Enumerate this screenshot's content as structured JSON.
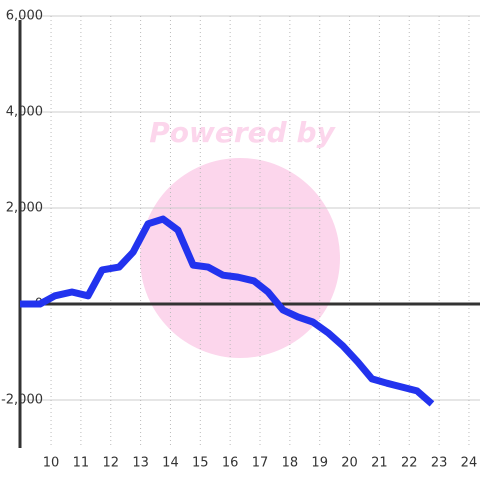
{
  "chart_data": {
    "type": "line",
    "watermark": "Powered by",
    "x": [
      8.96,
      9.63,
      10.13,
      10.7,
      11.24,
      11.71,
      12.28,
      12.75,
      13.25,
      13.75,
      14.25,
      14.76,
      15.26,
      15.76,
      16.26,
      16.8,
      17.27,
      17.77,
      18.27,
      18.77,
      19.28,
      19.78,
      20.28,
      20.75,
      21.25,
      21.75,
      22.26,
      22.76
    ],
    "series": [
      {
        "color": "#2233ee",
        "values": [
          0,
          0,
          170,
          250,
          170,
          710,
          770,
          1080,
          1670,
          1770,
          1540,
          810,
          770,
          600,
          560,
          480,
          250,
          -125,
          -270,
          -375,
          -600,
          -875,
          -1210,
          -1560,
          -1650,
          -1730,
          -1810,
          -2080
        ]
      }
    ],
    "xlim": [
      8.96,
      24.37
    ],
    "ylim": [
      -3000,
      6000
    ],
    "xticks": [
      10,
      11,
      12,
      13,
      14,
      15,
      16,
      17,
      18,
      19,
      20,
      21,
      22,
      23,
      24
    ],
    "yticks": [
      {
        "value": -2000,
        "label": "-2,000"
      },
      0,
      {
        "value": 2000,
        "label": "2,000"
      },
      {
        "value": 4000,
        "label": "4,000"
      },
      {
        "value": 6000,
        "label": "6,000"
      }
    ],
    "grid": true
  }
}
